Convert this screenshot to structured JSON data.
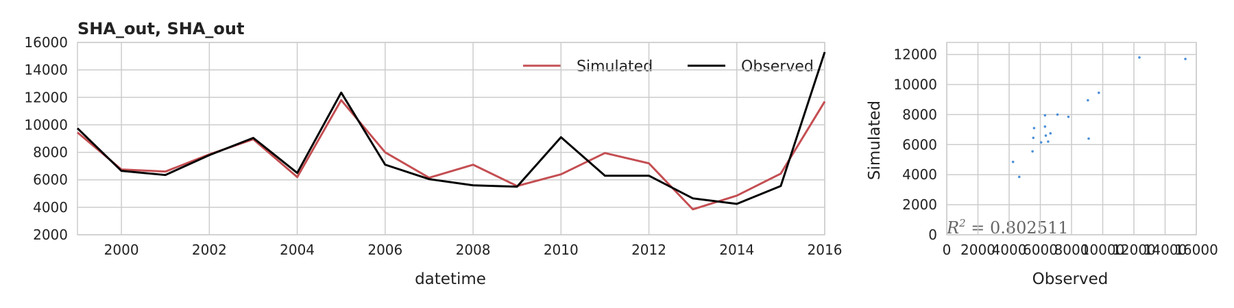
{
  "chart_data": [
    {
      "type": "line",
      "title": "SHA_out, SHA_out",
      "xlabel": "datetime",
      "ylabel": "",
      "x": [
        1999,
        2000,
        2001,
        2002,
        2003,
        2004,
        2005,
        2006,
        2007,
        2008,
        2009,
        2010,
        2011,
        2012,
        2013,
        2014,
        2015,
        2016
      ],
      "x_ticks": [
        "2000",
        "2002",
        "2004",
        "2006",
        "2008",
        "2010",
        "2012",
        "2014",
        "2016"
      ],
      "y_ticks": [
        "2000",
        "4000",
        "6000",
        "8000",
        "10000",
        "12000",
        "14000",
        "16000"
      ],
      "xlim": [
        1999,
        2016
      ],
      "ylim": [
        2000,
        16000
      ],
      "grid": true,
      "legend_position": "top-right",
      "series": [
        {
          "name": "Simulated",
          "color": "#c44e52",
          "values": [
            9450,
            6750,
            6600,
            7850,
            8950,
            6200,
            11800,
            8000,
            6150,
            7100,
            5550,
            6400,
            7950,
            7200,
            3850,
            4850,
            6450,
            11700
          ]
        },
        {
          "name": "Observed",
          "color": "#000000",
          "values": [
            9750,
            6650,
            6350,
            7800,
            9050,
            6500,
            12350,
            7100,
            6050,
            5600,
            5500,
            9100,
            6300,
            6300,
            4650,
            4250,
            5550,
            15300
          ]
        }
      ]
    },
    {
      "type": "scatter",
      "title": "",
      "xlabel": "Observed",
      "ylabel": "Simulated",
      "x_ticks": [
        "0",
        "2000",
        "4000",
        "6000",
        "8000",
        "10000",
        "12000",
        "14000",
        "16000"
      ],
      "y_ticks": [
        "0",
        "2000",
        "4000",
        "6000",
        "8000",
        "10000",
        "12000"
      ],
      "xlim": [
        0,
        16000
      ],
      "ylim": [
        0,
        12800
      ],
      "grid": true,
      "point_color": "#4c8fd6",
      "annotation": "R^2 = 0.802511",
      "points": [
        {
          "x": 9750,
          "y": 9450
        },
        {
          "x": 6650,
          "y": 6750
        },
        {
          "x": 6350,
          "y": 6600
        },
        {
          "x": 7800,
          "y": 7850
        },
        {
          "x": 9050,
          "y": 8950
        },
        {
          "x": 6500,
          "y": 6200
        },
        {
          "x": 12350,
          "y": 11800
        },
        {
          "x": 7100,
          "y": 8000
        },
        {
          "x": 6050,
          "y": 6150
        },
        {
          "x": 5600,
          "y": 7100
        },
        {
          "x": 5500,
          "y": 5550
        },
        {
          "x": 9100,
          "y": 6400
        },
        {
          "x": 6300,
          "y": 7950
        },
        {
          "x": 6300,
          "y": 7200
        },
        {
          "x": 4650,
          "y": 3850
        },
        {
          "x": 4250,
          "y": 4850
        },
        {
          "x": 5550,
          "y": 6450
        },
        {
          "x": 15300,
          "y": 11700
        }
      ]
    }
  ]
}
